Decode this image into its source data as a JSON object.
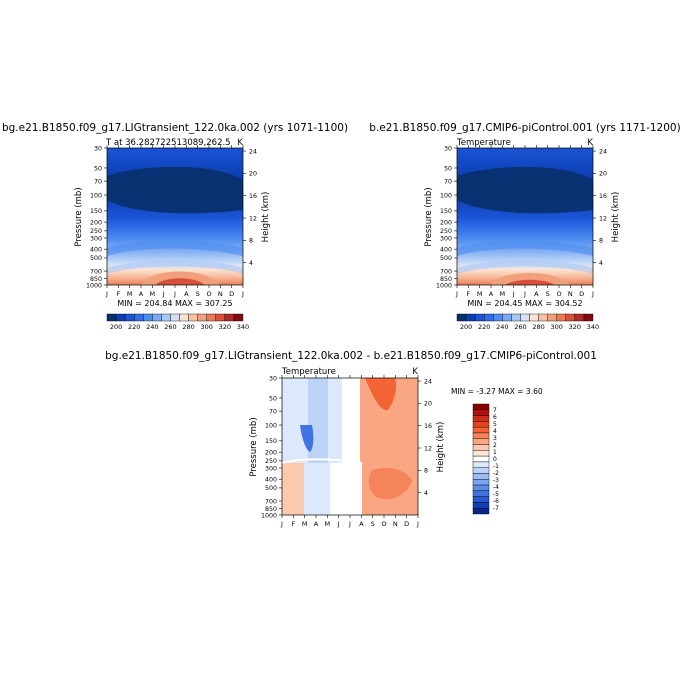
{
  "chart_data": [
    {
      "type": "heatmap",
      "title": "bg.e21.B1850.f09_g17.LIGtransient_122.0ka.002 (yrs 1071-1100)",
      "left_label": "T at 36.282722513089,262.5",
      "units": "K",
      "xlabel": "",
      "ylabel": "Pressure (mb)",
      "right_axis_label": "Height (km)",
      "stats": "MIN = 204.84 MAX = 307.25",
      "months": [
        "J",
        "F",
        "M",
        "A",
        "M",
        "J",
        "J",
        "A",
        "S",
        "O",
        "N",
        "D",
        "J"
      ],
      "pressure_ticks": [
        "30",
        "50",
        "70",
        "100",
        "150",
        "200",
        "250",
        "300",
        "400",
        "500",
        "700",
        "850",
        "1000"
      ],
      "height_ticks": [
        "24",
        "20",
        "16",
        "12",
        "8",
        "4"
      ],
      "colorbar": {
        "labels": [
          "200",
          "220",
          "240",
          "260",
          "280",
          "300",
          "320",
          "340"
        ],
        "colors": [
          "#08306b",
          "#0b3fb0",
          "#1a53d6",
          "#2f6ee6",
          "#4d8cf0",
          "#7aaaf3",
          "#a6c6f6",
          "#d2e1f8",
          "#fbe3d2",
          "#f7c3a6",
          "#f2a07c",
          "#ea7a55",
          "#d9503a",
          "#b32a25",
          "#7f0d10"
        ]
      },
      "ylim_pressure": [
        1000,
        30
      ]
    },
    {
      "type": "heatmap",
      "title": "b.e21.B1850.f09_g17.CMIP6-piControl.001 (yrs 1171-1200)",
      "left_label": "Temperature",
      "units": "K",
      "xlabel": "",
      "ylabel": "Pressure (mb)",
      "right_axis_label": "Height (km)",
      "stats": "MIN = 204.45 MAX = 304.52",
      "months": [
        "J",
        "F",
        "M",
        "A",
        "M",
        "J",
        "J",
        "A",
        "S",
        "O",
        "N",
        "D",
        "J"
      ],
      "pressure_ticks": [
        "30",
        "50",
        "70",
        "100",
        "150",
        "200",
        "250",
        "300",
        "400",
        "500",
        "700",
        "850",
        "1000"
      ],
      "height_ticks": [
        "24",
        "20",
        "16",
        "12",
        "8",
        "4"
      ],
      "colorbar": {
        "labels": [
          "200",
          "220",
          "240",
          "260",
          "280",
          "300",
          "320",
          "340"
        ],
        "colors": [
          "#08306b",
          "#0b3fb0",
          "#1a53d6",
          "#2f6ee6",
          "#4d8cf0",
          "#7aaaf3",
          "#a6c6f6",
          "#d2e1f8",
          "#fbe3d2",
          "#f7c3a6",
          "#f2a07c",
          "#ea7a55",
          "#d9503a",
          "#b32a25",
          "#7f0d10"
        ]
      },
      "ylim_pressure": [
        1000,
        30
      ]
    },
    {
      "type": "heatmap",
      "title": "bg.e21.B1850.f09_g17.LIGtransient_122.0ka.002 - b.e21.B1850.f09_g17.CMIP6-piControl.001",
      "left_label": "Temperature",
      "units": "K",
      "xlabel": "",
      "ylabel": "Pressure (mb)",
      "right_axis_label": "Height (km)",
      "stats": "MIN = -3.27 MAX = 3.60",
      "months": [
        "J",
        "F",
        "M",
        "A",
        "M",
        "J",
        "J",
        "A",
        "S",
        "O",
        "N",
        "D",
        "J"
      ],
      "pressure_ticks": [
        "30",
        "50",
        "70",
        "100",
        "150",
        "200",
        "250",
        "300",
        "400",
        "500",
        "700",
        "850",
        "1000"
      ],
      "height_ticks": [
        "24",
        "20",
        "16",
        "12",
        "8",
        "4"
      ],
      "colorbar": {
        "labels": [
          "7",
          "6",
          "5",
          "4",
          "3",
          "2",
          "1",
          "0",
          "-1",
          "-2",
          "-3",
          "-4",
          "-5",
          "-6",
          "-7"
        ],
        "colors": [
          "#8b0000",
          "#b3110e",
          "#d42a1b",
          "#e8431f",
          "#f26335",
          "#f6845a",
          "#f9a683",
          "#fcc9ad",
          "#fde8d8",
          "#ffffff",
          "#dce8fb",
          "#bcd3f7",
          "#9bbdf3",
          "#7aa5ee",
          "#5b8de8",
          "#3f73df",
          "#2658cf",
          "#123fb4",
          "#07288a"
        ]
      },
      "ylim_pressure": [
        1000,
        30
      ]
    }
  ]
}
